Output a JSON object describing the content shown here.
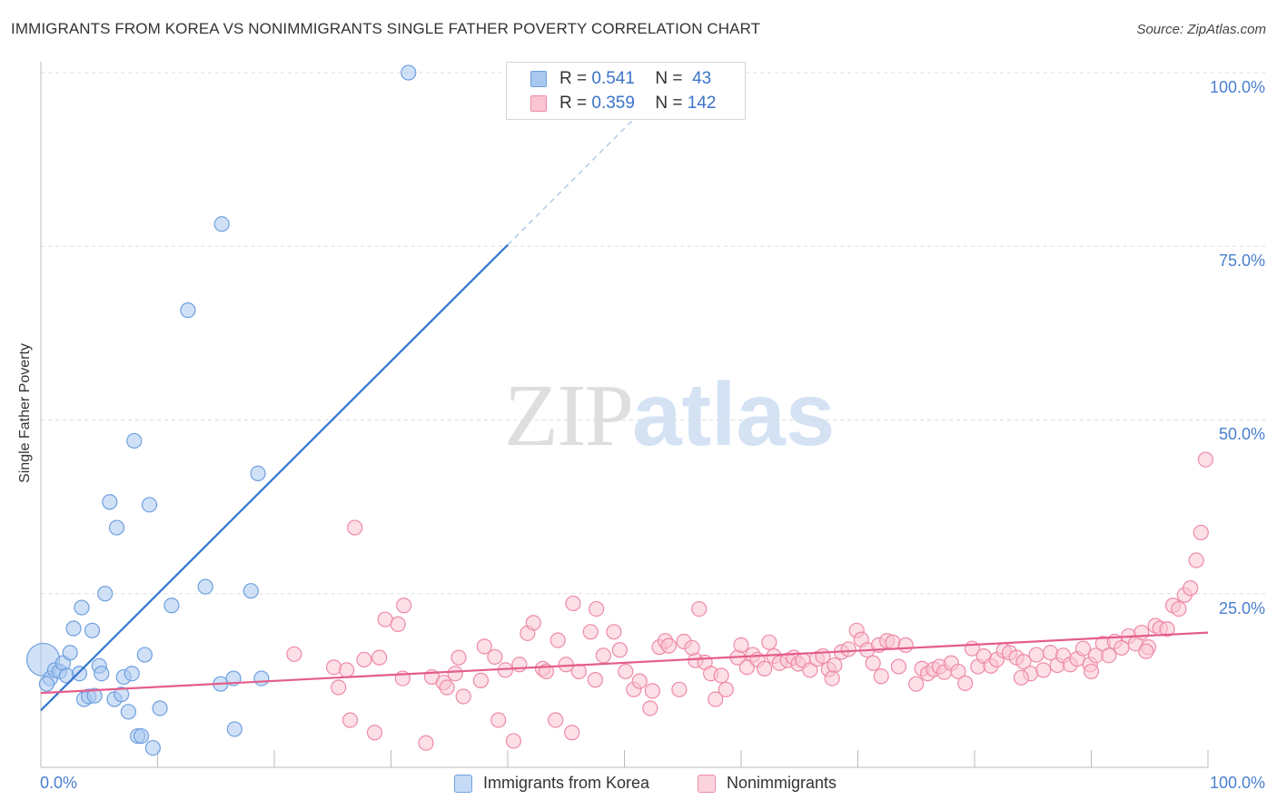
{
  "header": {
    "title": "IMMIGRANTS FROM KOREA VS NONIMMIGRANTS SINGLE FATHER POVERTY CORRELATION CHART",
    "source": "Source: ZipAtlas.com"
  },
  "watermark": {
    "zip": "ZIP",
    "atlas": "atlas"
  },
  "legend": {
    "rows": [
      {
        "r_label": "R =",
        "r_value": "0.541",
        "n_label": "N =",
        "n_value": "43",
        "color": "#a9c8f0",
        "border": "#6e9fe0"
      },
      {
        "r_label": "R =",
        "r_value": "0.359",
        "n_label": "N =",
        "n_value": "142",
        "color": "#f9c4d3",
        "border": "#ee8aa6"
      }
    ]
  },
  "bottom_legend": [
    {
      "label": "Immigrants from Korea",
      "color": "#c5daf5",
      "border": "#6e9fe0"
    },
    {
      "label": "Nonimmigrants",
      "color": "#fbd3df",
      "border": "#ee8aa6"
    }
  ],
  "chart_data": {
    "type": "scatter",
    "title": "IMMIGRANTS FROM KOREA VS NONIMMIGRANTS SINGLE FATHER POVERTY CORRELATION CHART",
    "xlabel": "",
    "ylabel": "Single Father Poverty",
    "xlim": [
      0,
      100
    ],
    "ylim": [
      0,
      100
    ],
    "x_tick_labels": [
      "0.0%",
      "100.0%"
    ],
    "y_ticks": [
      {
        "value": 25,
        "label": "25.0%"
      },
      {
        "value": 50,
        "label": "50.0%"
      },
      {
        "value": 75,
        "label": "75.0%"
      },
      {
        "value": 100,
        "label": "100.0%"
      }
    ],
    "grid": "horizontal dashed",
    "series": [
      {
        "name": "Immigrants from Korea",
        "color": "#a9c8f0",
        "edge": "#6e9fe0",
        "line_color": "#2f74d0",
        "r": 0.541,
        "n": 43,
        "trend": {
          "x0": 0,
          "y0": 8.2,
          "x1": 40,
          "y1": 75.2,
          "x_dash_end": 53,
          "y_dash_end": 97
        },
        "points": [
          [
            0.2,
            15.5
          ],
          [
            0.8,
            12.8
          ],
          [
            1.2,
            14.0
          ],
          [
            1.6,
            13.8
          ],
          [
            1.9,
            15.0
          ],
          [
            2.2,
            13.2
          ],
          [
            2.5,
            16.5
          ],
          [
            2.8,
            20.0
          ],
          [
            3.3,
            13.5
          ],
          [
            3.5,
            23.0
          ],
          [
            3.7,
            9.8
          ],
          [
            4.1,
            10.2
          ],
          [
            4.4,
            19.7
          ],
          [
            4.6,
            10.3
          ],
          [
            5.0,
            14.6
          ],
          [
            5.2,
            13.5
          ],
          [
            5.5,
            25.0
          ],
          [
            5.9,
            38.2
          ],
          [
            6.3,
            9.8
          ],
          [
            6.5,
            34.5
          ],
          [
            6.9,
            10.5
          ],
          [
            7.1,
            13.0
          ],
          [
            7.5,
            8.0
          ],
          [
            7.8,
            13.5
          ],
          [
            8.0,
            47.0
          ],
          [
            8.3,
            4.5
          ],
          [
            8.6,
            4.5
          ],
          [
            8.9,
            16.2
          ],
          [
            9.3,
            37.8
          ],
          [
            9.6,
            2.8
          ],
          [
            10.2,
            8.5
          ],
          [
            11.2,
            23.3
          ],
          [
            12.6,
            65.8
          ],
          [
            14.1,
            26.0
          ],
          [
            15.4,
            12.0
          ],
          [
            15.5,
            78.2
          ],
          [
            16.5,
            12.8
          ],
          [
            16.6,
            5.5
          ],
          [
            18.0,
            25.4
          ],
          [
            18.6,
            42.3
          ],
          [
            18.9,
            12.8
          ],
          [
            31.5,
            100.0
          ],
          [
            0.5,
            12.0
          ]
        ]
      },
      {
        "name": "Nonimmigrants",
        "color": "#f9c4d3",
        "edge": "#ee8aa6",
        "line_color": "#e45d8a",
        "r": 0.359,
        "n": 142,
        "trend": {
          "x0": 0,
          "y0": 10.7,
          "x1": 100,
          "y1": 19.4
        },
        "points": [
          [
            21.7,
            16.3
          ],
          [
            25.1,
            14.4
          ],
          [
            25.5,
            11.5
          ],
          [
            26.2,
            14.0
          ],
          [
            26.5,
            6.8
          ],
          [
            26.9,
            34.5
          ],
          [
            27.7,
            15.5
          ],
          [
            28.6,
            5.0
          ],
          [
            29.0,
            15.8
          ],
          [
            29.5,
            21.3
          ],
          [
            30.6,
            20.6
          ],
          [
            31.1,
            23.3
          ],
          [
            33.0,
            3.5
          ],
          [
            33.5,
            13.0
          ],
          [
            34.5,
            12.2
          ],
          [
            34.8,
            11.5
          ],
          [
            35.5,
            13.5
          ],
          [
            35.8,
            15.8
          ],
          [
            37.7,
            12.5
          ],
          [
            38.0,
            17.4
          ],
          [
            38.9,
            15.9
          ],
          [
            39.2,
            6.8
          ],
          [
            39.8,
            14.0
          ],
          [
            40.5,
            3.8
          ],
          [
            41.0,
            14.8
          ],
          [
            41.7,
            19.3
          ],
          [
            42.2,
            20.8
          ],
          [
            43.0,
            14.2
          ],
          [
            43.3,
            13.8
          ],
          [
            44.1,
            6.8
          ],
          [
            44.3,
            18.3
          ],
          [
            45.0,
            14.8
          ],
          [
            45.5,
            5.0
          ],
          [
            45.6,
            23.6
          ],
          [
            46.1,
            13.8
          ],
          [
            47.1,
            19.5
          ],
          [
            47.6,
            22.8
          ],
          [
            48.2,
            16.1
          ],
          [
            49.1,
            19.5
          ],
          [
            49.6,
            16.9
          ],
          [
            50.1,
            13.8
          ],
          [
            50.8,
            11.2
          ],
          [
            51.3,
            12.4
          ],
          [
            52.2,
            8.5
          ],
          [
            52.4,
            11.0
          ],
          [
            53.0,
            17.3
          ],
          [
            53.5,
            18.2
          ],
          [
            53.8,
            17.5
          ],
          [
            54.7,
            11.2
          ],
          [
            55.1,
            18.1
          ],
          [
            56.1,
            15.4
          ],
          [
            56.4,
            22.8
          ],
          [
            56.9,
            15.1
          ],
          [
            57.4,
            13.5
          ],
          [
            57.8,
            9.8
          ],
          [
            58.3,
            13.2
          ],
          [
            58.7,
            11.2
          ],
          [
            59.7,
            15.8
          ],
          [
            60.0,
            17.6
          ],
          [
            60.5,
            14.4
          ],
          [
            61.0,
            16.2
          ],
          [
            61.4,
            15.5
          ],
          [
            62.0,
            14.2
          ],
          [
            62.4,
            18.0
          ],
          [
            62.8,
            16.0
          ],
          [
            63.3,
            15.0
          ],
          [
            64.0,
            15.4
          ],
          [
            64.5,
            15.8
          ],
          [
            64.9,
            14.9
          ],
          [
            65.3,
            15.4
          ],
          [
            65.9,
            14.0
          ],
          [
            66.5,
            15.6
          ],
          [
            67.0,
            16.0
          ],
          [
            67.5,
            14.1
          ],
          [
            68.0,
            14.7
          ],
          [
            68.6,
            16.6
          ],
          [
            69.2,
            17.0
          ],
          [
            69.9,
            19.7
          ],
          [
            70.3,
            18.4
          ],
          [
            70.8,
            16.9
          ],
          [
            71.3,
            15.0
          ],
          [
            71.8,
            17.6
          ],
          [
            72.5,
            18.2
          ],
          [
            73.0,
            18.0
          ],
          [
            73.5,
            14.5
          ],
          [
            74.1,
            17.6
          ],
          [
            75.0,
            12.0
          ],
          [
            75.5,
            14.2
          ],
          [
            76.0,
            13.5
          ],
          [
            76.5,
            14.1
          ],
          [
            77.0,
            14.5
          ],
          [
            77.4,
            13.7
          ],
          [
            78.0,
            15.0
          ],
          [
            78.6,
            13.8
          ],
          [
            79.2,
            12.1
          ],
          [
            79.8,
            17.1
          ],
          [
            80.3,
            14.5
          ],
          [
            80.8,
            16.0
          ],
          [
            81.4,
            14.6
          ],
          [
            81.9,
            15.5
          ],
          [
            82.5,
            16.8
          ],
          [
            83.0,
            16.5
          ],
          [
            83.6,
            15.8
          ],
          [
            84.2,
            15.2
          ],
          [
            84.8,
            13.5
          ],
          [
            85.3,
            16.2
          ],
          [
            85.9,
            14.0
          ],
          [
            86.5,
            16.5
          ],
          [
            87.1,
            14.7
          ],
          [
            87.6,
            16.1
          ],
          [
            88.2,
            14.8
          ],
          [
            88.8,
            15.6
          ],
          [
            89.3,
            17.1
          ],
          [
            89.9,
            14.8
          ],
          [
            90.4,
            16.1
          ],
          [
            91.0,
            17.8
          ],
          [
            91.5,
            16.1
          ],
          [
            92.0,
            18.1
          ],
          [
            92.6,
            17.2
          ],
          [
            93.2,
            18.9
          ],
          [
            93.8,
            17.8
          ],
          [
            94.3,
            19.4
          ],
          [
            94.9,
            17.3
          ],
          [
            95.5,
            20.4
          ],
          [
            95.9,
            20.0
          ],
          [
            96.5,
            19.9
          ],
          [
            97.0,
            23.3
          ],
          [
            97.5,
            22.8
          ],
          [
            98.0,
            24.8
          ],
          [
            98.5,
            25.8
          ],
          [
            99.0,
            29.8
          ],
          [
            99.4,
            33.8
          ],
          [
            99.8,
            44.3
          ],
          [
            31.0,
            12.8
          ],
          [
            36.2,
            10.2
          ],
          [
            47.5,
            12.6
          ],
          [
            55.8,
            17.2
          ],
          [
            67.8,
            12.8
          ],
          [
            72.0,
            13.1
          ],
          [
            84.0,
            12.9
          ],
          [
            90.0,
            13.8
          ],
          [
            94.7,
            16.7
          ]
        ]
      }
    ]
  }
}
